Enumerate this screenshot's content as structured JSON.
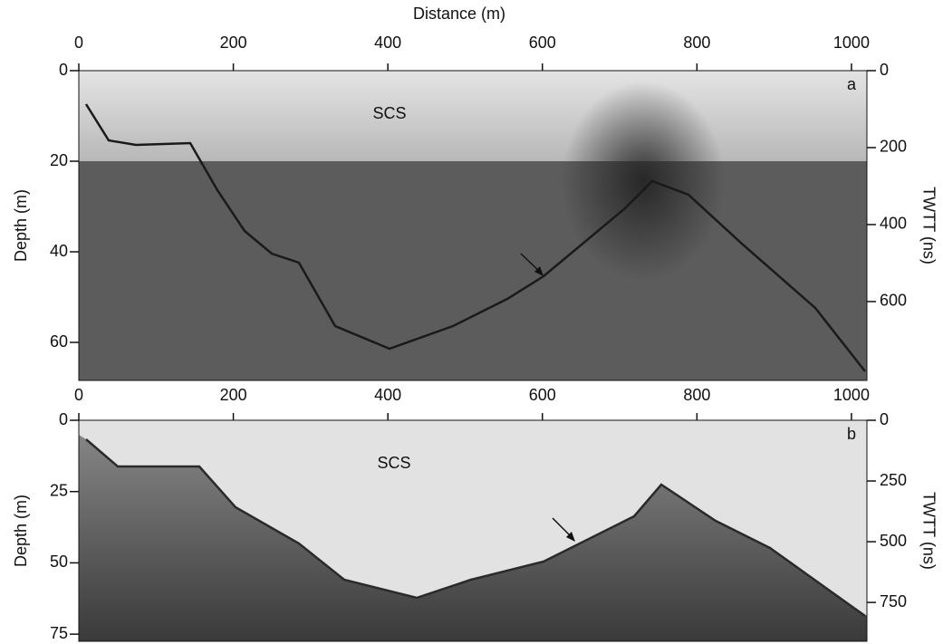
{
  "panels": [
    {
      "label": "a",
      "annotation": "SCS",
      "top_axis_label": "Distance (m)",
      "left_axis_label": "Depth (m)",
      "right_axis_label": "TWTT (ns)",
      "xlim": [
        0,
        1020
      ],
      "xticks": [
        0,
        200,
        400,
        600,
        800,
        1000
      ],
      "ylim": [
        0,
        68.4
      ],
      "yticks": [
        0,
        20,
        40,
        60
      ],
      "y2lim": [
        0,
        805
      ],
      "y2ticks": [
        0,
        200,
        400,
        600
      ]
    },
    {
      "label": "b",
      "annotation": "SCS",
      "left_axis_label": "Depth (m)",
      "right_axis_label": "TWTT (ns)",
      "xlim": [
        0,
        1020
      ],
      "xticks": [
        0,
        200,
        400,
        600,
        800,
        1000
      ],
      "ylim": [
        0,
        77.5
      ],
      "yticks": [
        0,
        25,
        50,
        75
      ],
      "y2lim": [
        0,
        910
      ],
      "y2ticks": [
        0,
        250,
        500,
        750
      ]
    }
  ]
}
